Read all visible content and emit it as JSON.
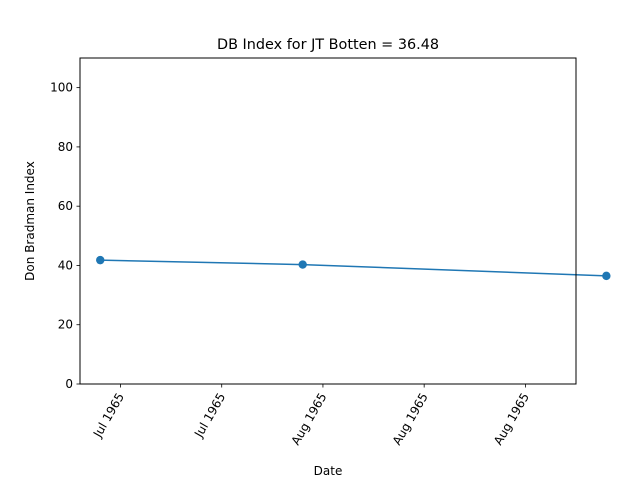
{
  "chart_data": {
    "type": "line",
    "title": "DB Index for JT Botten = 36.48",
    "xlabel": "Date",
    "ylabel": "Don Bradman Index",
    "ylim": [
      0,
      110
    ],
    "yticks": [
      0,
      20,
      40,
      60,
      80,
      100
    ],
    "xlim": [
      "1965-07-13",
      "1965-08-31"
    ],
    "xticks": [
      {
        "date": "1965-07-17",
        "label": "Jul 1965"
      },
      {
        "date": "1965-07-27",
        "label": "Jul 1965"
      },
      {
        "date": "1965-08-06",
        "label": "Aug 1965"
      },
      {
        "date": "1965-08-16",
        "label": "Aug 1965"
      },
      {
        "date": "1965-08-26",
        "label": "Aug 1965"
      }
    ],
    "series": [
      {
        "x": [
          "1965-07-15",
          "1965-08-04",
          "1965-09-03"
        ],
        "values": [
          41.8,
          40.3,
          36.48
        ],
        "color": "#1f77b4"
      }
    ],
    "grid": false,
    "legend": "none"
  }
}
